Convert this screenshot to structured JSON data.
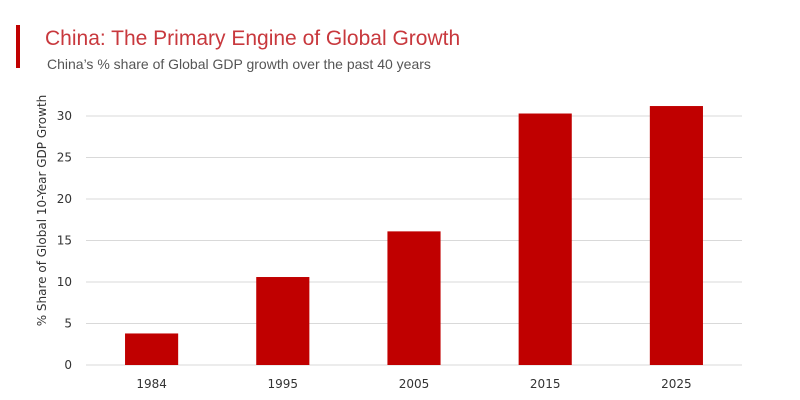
{
  "header": {
    "title": "China: The Primary Engine of Global Growth",
    "subtitle": "China’s % share of Global GDP growth over the past 40 years"
  },
  "colors": {
    "accent": "#c00000",
    "bar": "#c00000",
    "title": "#c8383d"
  },
  "chart_data": {
    "type": "bar",
    "title": "China: The Primary Engine of Global Growth",
    "subtitle": "China’s % share of Global GDP growth over the past 40 years",
    "categories": [
      "1984",
      "1995",
      "2005",
      "2015",
      "2025"
    ],
    "values": [
      3.8,
      10.6,
      16.1,
      30.3,
      31.2
    ],
    "xlabel": "",
    "ylabel": "% Share of Global 10-Year GDP Growth",
    "ylim": [
      0,
      30
    ],
    "yticks": [
      "0",
      "5",
      "10",
      "15",
      "20",
      "25",
      "30"
    ],
    "grid": true,
    "legend": "none"
  }
}
